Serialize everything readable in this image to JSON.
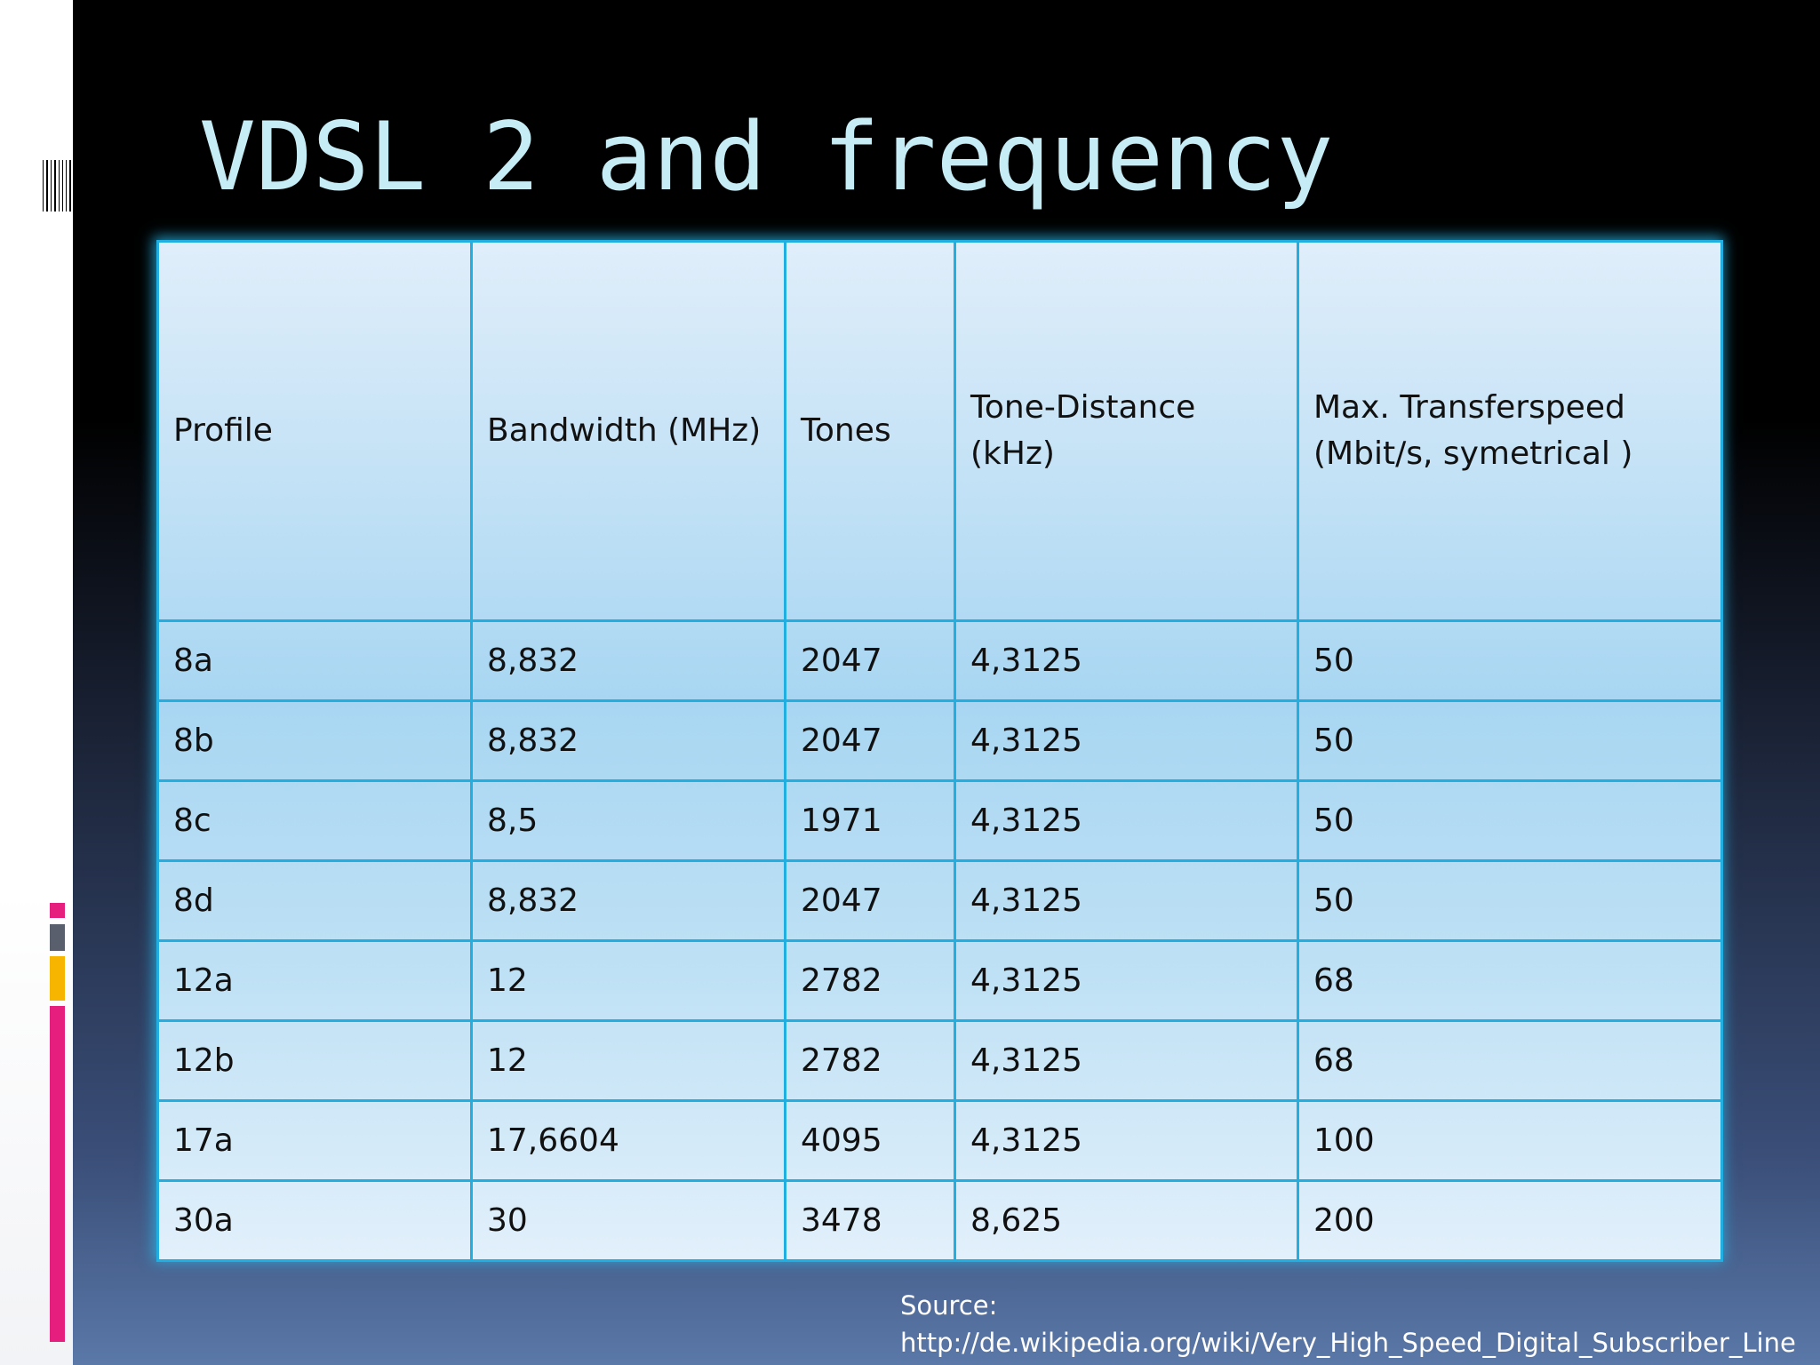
{
  "slide": {
    "title": "VDSL 2 and frequency"
  },
  "table": {
    "headers": [
      "Profile",
      "Bandwidth (MHz)",
      "Tones",
      "Tone-Distance (kHz)",
      "Max. Transferspeed (Mbit/s, symetrical )"
    ],
    "rows": [
      [
        "8a",
        "8,832",
        "2047",
        "4,3125",
        "50"
      ],
      [
        "8b",
        "8,832",
        "2047",
        "4,3125",
        "50"
      ],
      [
        "8c",
        "8,5",
        "1971",
        "4,3125",
        "50"
      ],
      [
        "8d",
        "8,832",
        "2047",
        "4,3125",
        "50"
      ],
      [
        "12a",
        "12",
        "2782",
        "4,3125",
        "68"
      ],
      [
        "12b",
        "12",
        "2782",
        "4,3125",
        "68"
      ],
      [
        "17a",
        "17,6604",
        "4095",
        "4,3125",
        "100"
      ],
      [
        "30a",
        "30",
        "3478",
        "8,625",
        "200"
      ]
    ]
  },
  "source": {
    "label": "Source:",
    "url": "http://de.wikipedia.org/wiki/Very_High_Speed_Digital_Subscriber_Line"
  },
  "colors": {
    "title": "#c6ecf6",
    "table_border": "#21aee0",
    "accent_pink": "#e61e7d",
    "accent_gray": "#5a5f6e",
    "accent_yellow": "#f7b500"
  }
}
